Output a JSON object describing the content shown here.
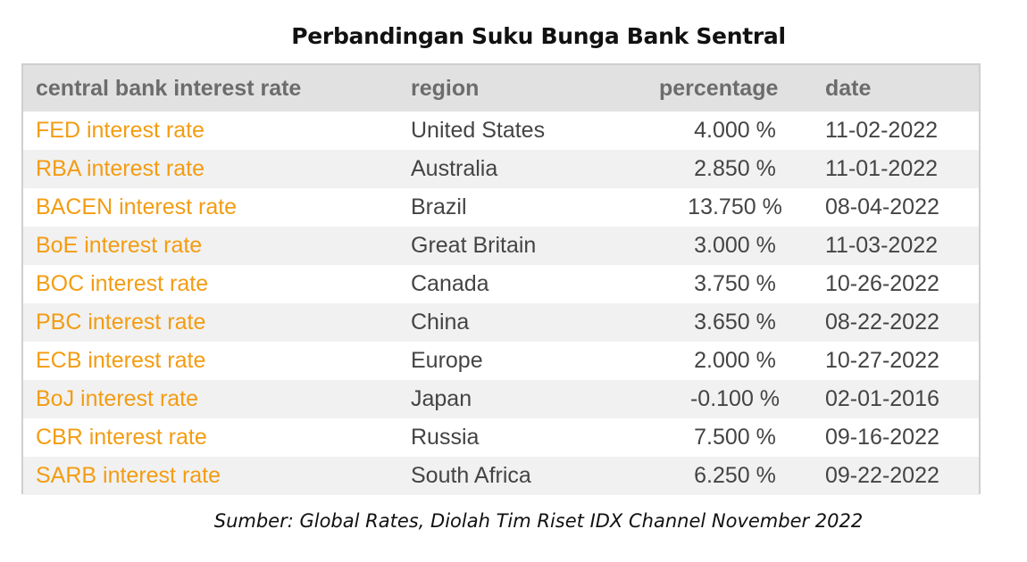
{
  "chart_data": {
    "type": "table",
    "title": "Perbandingan Suku Bunga Bank Sentral",
    "columns": [
      "central bank interest rate",
      "region",
      "percentage",
      "date"
    ],
    "rows": [
      {
        "name": "FED interest rate",
        "region": "United States",
        "percentage": "4.000 %",
        "date": "11-02-2022"
      },
      {
        "name": "RBA interest rate",
        "region": "Australia",
        "percentage": "2.850 %",
        "date": "11-01-2022"
      },
      {
        "name": "BACEN interest rate",
        "region": "Brazil",
        "percentage": "13.750 %",
        "date": "08-04-2022"
      },
      {
        "name": "BoE interest rate",
        "region": "Great Britain",
        "percentage": "3.000 %",
        "date": "11-03-2022"
      },
      {
        "name": "BOC interest rate",
        "region": "Canada",
        "percentage": "3.750 %",
        "date": "10-26-2022"
      },
      {
        "name": "PBC interest rate",
        "region": "China",
        "percentage": "3.650 %",
        "date": "08-22-2022"
      },
      {
        "name": "ECB interest rate",
        "region": "Europe",
        "percentage": "2.000 %",
        "date": "10-27-2022"
      },
      {
        "name": "BoJ interest rate",
        "region": "Japan",
        "percentage": "-0.100 %",
        "date": "02-01-2016"
      },
      {
        "name": "CBR interest rate",
        "region": "Russia",
        "percentage": "7.500 %",
        "date": "09-16-2022"
      },
      {
        "name": "SARB interest rate",
        "region": "South Africa",
        "percentage": "6.250 %",
        "date": "09-22-2022"
      }
    ],
    "source": "Sumber: Global Rates, Diolah Tim Riset IDX Channel November 2022"
  },
  "colors": {
    "link": "#f39c12",
    "header_bg": "#e1e1e1",
    "row_alt_bg": "#f1f1f1",
    "header_text": "#6c6c6c",
    "cell_text": "#444444"
  }
}
